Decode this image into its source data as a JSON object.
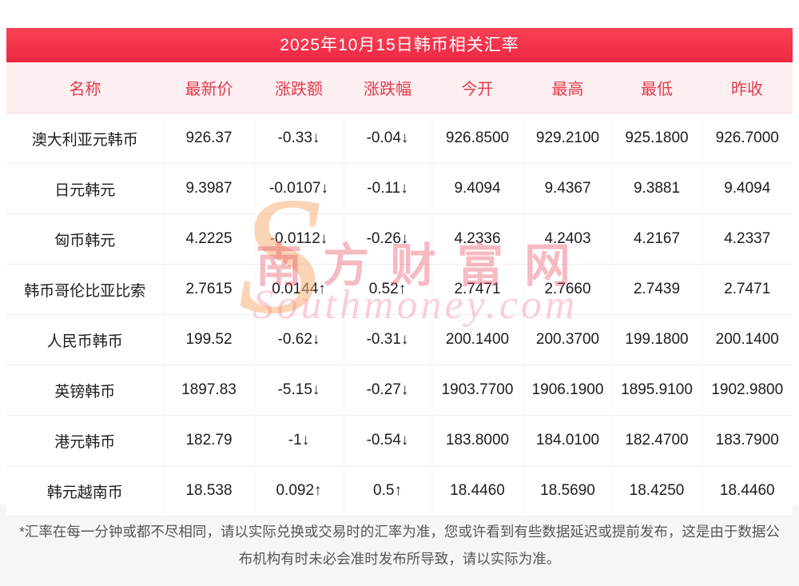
{
  "title": "2025年10月15日韩币相关汇率",
  "colors": {
    "accent": "#ee2742",
    "accent_light": "#fa4156",
    "header_bg": "#fdeff0",
    "header_text": "#e23a4b",
    "up": "#f01421",
    "down": "#0ba145"
  },
  "table": {
    "headers": [
      "名称",
      "最新价",
      "涨跌额",
      "涨跌幅",
      "今开",
      "最高",
      "最低",
      "昨收"
    ],
    "rows": [
      {
        "name": "澳大利亚元韩币",
        "latest": "926.37",
        "change": "-0.33↓",
        "pct": "-0.04↓",
        "open": "926.8500",
        "high": "929.2100",
        "low": "925.1800",
        "prev": "926.7000",
        "trend": "down"
      },
      {
        "name": "日元韩元",
        "latest": "9.3987",
        "change": "-0.0107↓",
        "pct": "-0.11↓",
        "open": "9.4094",
        "high": "9.4367",
        "low": "9.3881",
        "prev": "9.4094",
        "trend": "down"
      },
      {
        "name": "匈币韩元",
        "latest": "4.2225",
        "change": "-0.0112↓",
        "pct": "-0.26↓",
        "open": "4.2336",
        "high": "4.2403",
        "low": "4.2167",
        "prev": "4.2337",
        "trend": "down"
      },
      {
        "name": "韩币哥伦比亚比索",
        "latest": "2.7615",
        "change": "0.0144↑",
        "pct": "0.52↑",
        "open": "2.7471",
        "high": "2.7660",
        "low": "2.7439",
        "prev": "2.7471",
        "trend": "up"
      },
      {
        "name": "人民币韩币",
        "latest": "199.52",
        "change": "-0.62↓",
        "pct": "-0.31↓",
        "open": "200.1400",
        "high": "200.3700",
        "low": "199.1800",
        "prev": "200.1400",
        "trend": "down"
      },
      {
        "name": "英镑韩币",
        "latest": "1897.83",
        "change": "-5.15↓",
        "pct": "-0.27↓",
        "open": "1903.7700",
        "high": "1906.1900",
        "low": "1895.9100",
        "prev": "1902.9800",
        "trend": "down"
      },
      {
        "name": "港元韩币",
        "latest": "182.79",
        "change": "-1↓",
        "pct": "-0.54↓",
        "open": "183.8000",
        "high": "184.0100",
        "low": "182.4700",
        "prev": "183.7900",
        "trend": "down"
      },
      {
        "name": "韩元越南币",
        "latest": "18.538",
        "change": "0.092↑",
        "pct": "0.5↑",
        "open": "18.4460",
        "high": "18.5690",
        "low": "18.4250",
        "prev": "18.4460",
        "trend": "up"
      }
    ]
  },
  "watermark": {
    "initial": "S",
    "line1": "南方财富网",
    "line2": "Southmoney.com"
  },
  "footnote": "*汇率在每一分钟或都不尽相同，请以实际兑换或交易时的汇率为准，您或许看到有些数据延迟或提前发布，这是由于数据公布机构有时未必会准时发布所导致，请以实际为准。"
}
